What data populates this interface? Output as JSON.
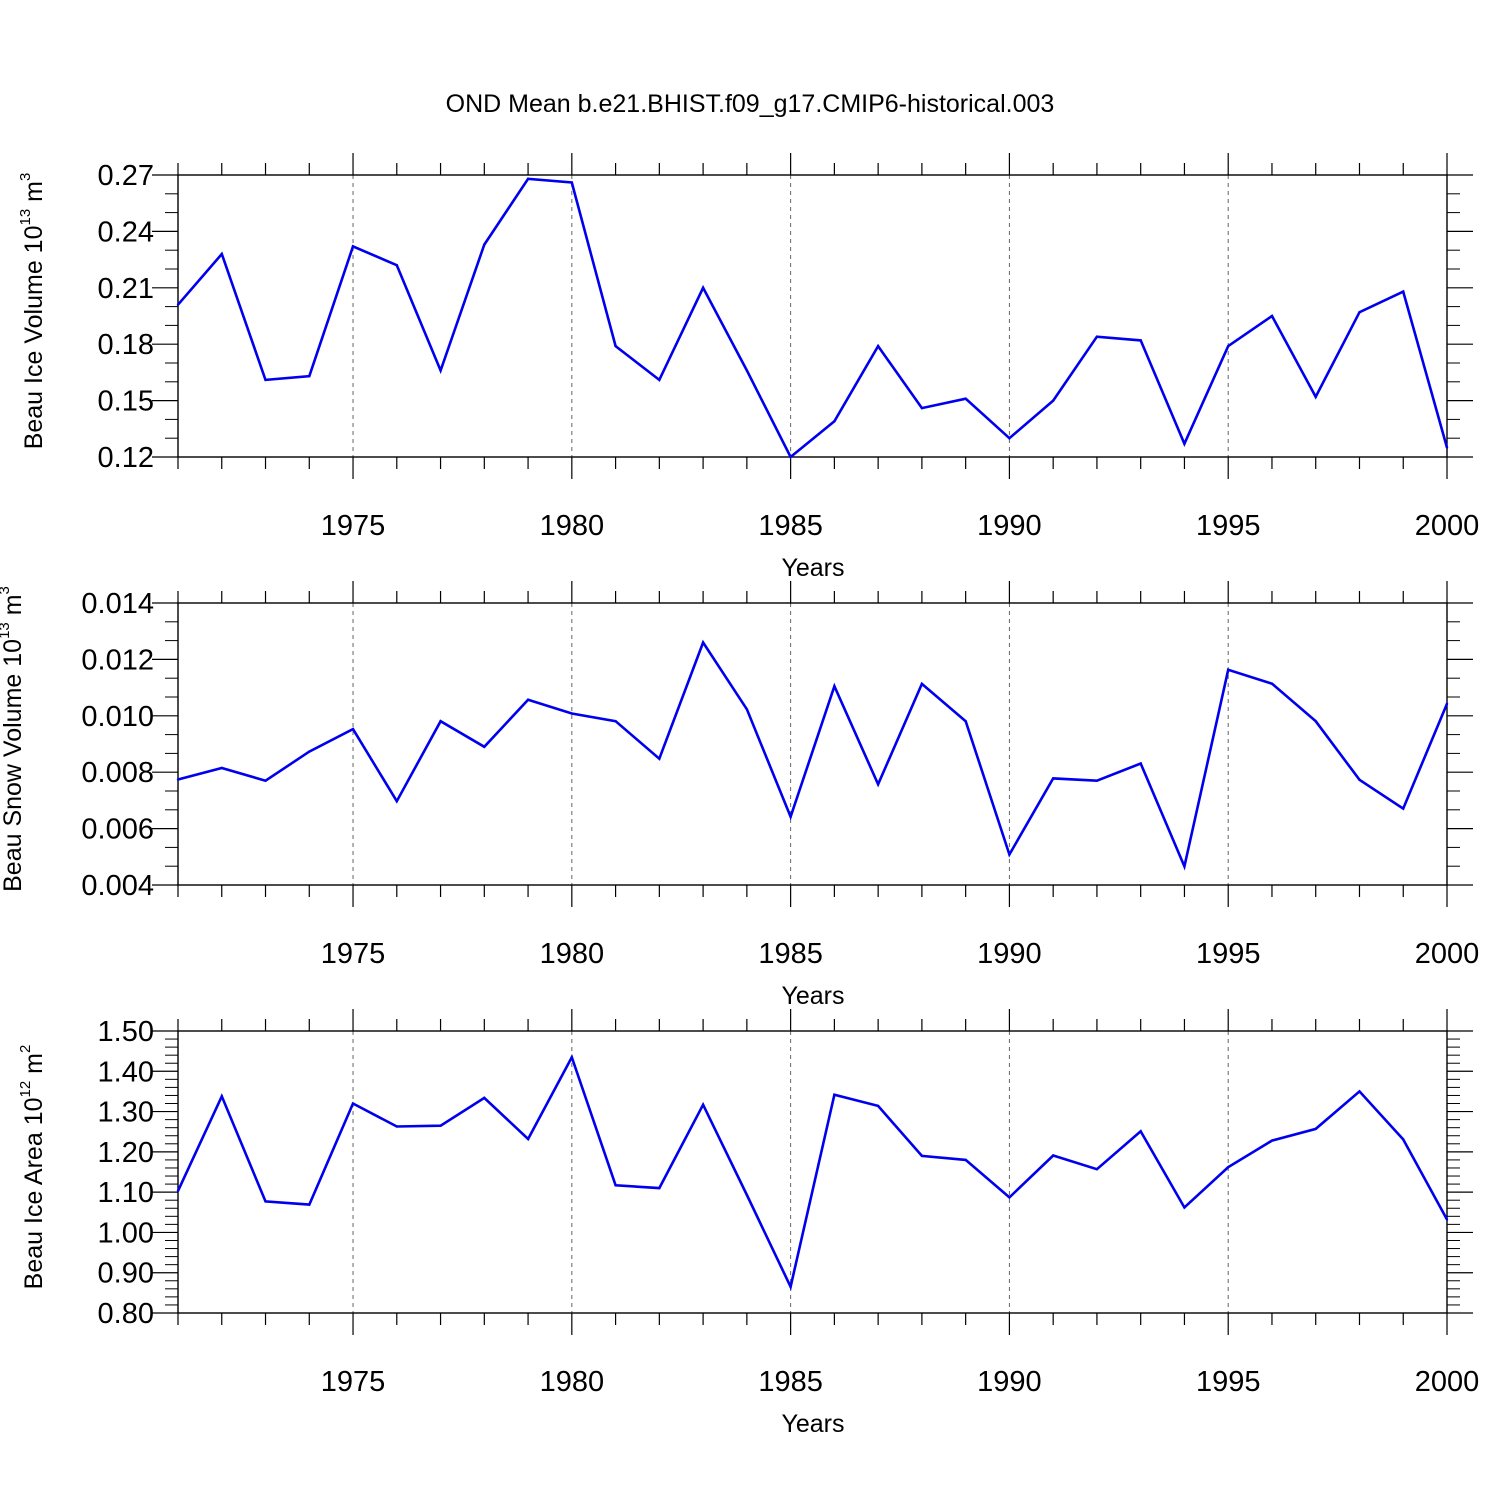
{
  "title": "OND Mean b.e21.BHIST.f09_g17.CMIP6-historical.003",
  "chart_data": [
    {
      "type": "line",
      "ylabel": "Beau Ice Volume 10",
      "ylabel_exp": "13",
      "ylabel_unit": " m",
      "ylabel_unit_exp": "3",
      "xlabel": "Years",
      "xlim": [
        1971,
        2000
      ],
      "ylim": [
        0.12,
        0.27
      ],
      "yticks": [
        0.12,
        0.15,
        0.18,
        0.21,
        0.24,
        0.27
      ],
      "ytick_labels": [
        "0.12",
        "0.15",
        "0.18",
        "0.21",
        "0.24",
        "0.27"
      ],
      "xticks": [
        1975,
        1980,
        1985,
        1990,
        1995,
        2000
      ],
      "xtick_labels": [
        "1975",
        "1980",
        "1985",
        "1990",
        "1995",
        "2000"
      ],
      "vgrid": [
        1975,
        1980,
        1985,
        1990,
        1995
      ],
      "color": "#0000ee",
      "x": [
        1971,
        1972,
        1973,
        1974,
        1975,
        1976,
        1977,
        1978,
        1979,
        1980,
        1981,
        1982,
        1983,
        1984,
        1985,
        1986,
        1987,
        1988,
        1989,
        1990,
        1991,
        1992,
        1993,
        1994,
        1995,
        1996,
        1997,
        1998,
        1999,
        2000
      ],
      "values": [
        0.201,
        0.228,
        0.161,
        0.163,
        0.232,
        0.222,
        0.166,
        0.233,
        0.268,
        0.266,
        0.179,
        0.161,
        0.21,
        0.166,
        0.12,
        0.139,
        0.179,
        0.146,
        0.151,
        0.13,
        0.15,
        0.184,
        0.182,
        0.127,
        0.179,
        0.195,
        0.152,
        0.197,
        0.208,
        0.125
      ]
    },
    {
      "type": "line",
      "ylabel": "Beau Snow Volume 10",
      "ylabel_exp": "13",
      "ylabel_unit": " m",
      "ylabel_unit_exp": "3",
      "xlabel": "Years",
      "xlim": [
        1971,
        2000
      ],
      "ylim": [
        0.004,
        0.014
      ],
      "yticks": [
        0.004,
        0.006,
        0.008,
        0.01,
        0.012,
        0.014
      ],
      "ytick_labels": [
        "0.004",
        "0.006",
        "0.008",
        "0.010",
        "0.012",
        "0.014"
      ],
      "xticks": [
        1975,
        1980,
        1985,
        1990,
        1995,
        2000
      ],
      "xtick_labels": [
        "1975",
        "1980",
        "1985",
        "1990",
        "1995",
        "2000"
      ],
      "vgrid": [
        1975,
        1980,
        1985,
        1990,
        1995
      ],
      "color": "#0000ee",
      "x": [
        1971,
        1972,
        1973,
        1974,
        1975,
        1976,
        1977,
        1978,
        1979,
        1980,
        1981,
        1982,
        1983,
        1984,
        1985,
        1986,
        1987,
        1988,
        1989,
        1990,
        1991,
        1992,
        1993,
        1994,
        1995,
        1996,
        1997,
        1998,
        1999,
        2000
      ],
      "values": [
        0.00774,
        0.00815,
        0.0077,
        0.00873,
        0.00953,
        0.00697,
        0.00981,
        0.0089,
        0.01057,
        0.01008,
        0.00981,
        0.00848,
        0.0126,
        0.01023,
        0.00642,
        0.01105,
        0.00757,
        0.01113,
        0.00981,
        0.00508,
        0.00778,
        0.0077,
        0.00831,
        0.00466,
        0.01163,
        0.01114,
        0.00981,
        0.00773,
        0.00671,
        0.01043
      ]
    },
    {
      "type": "line",
      "ylabel": "Beau Ice Area 10",
      "ylabel_exp": "12",
      "ylabel_unit": " m",
      "ylabel_unit_exp": "2",
      "xlabel": "Years",
      "xlim": [
        1971,
        2000
      ],
      "ylim": [
        0.8,
        1.5
      ],
      "yticks": [
        0.8,
        0.9,
        1.0,
        1.1,
        1.2,
        1.3,
        1.4,
        1.5
      ],
      "ytick_labels": [
        "0.80",
        "0.90",
        "1.00",
        "1.10",
        "1.20",
        "1.30",
        "1.40",
        "1.50"
      ],
      "xticks": [
        1975,
        1980,
        1985,
        1990,
        1995,
        2000
      ],
      "xtick_labels": [
        "1975",
        "1980",
        "1985",
        "1990",
        "1995",
        "2000"
      ],
      "vgrid": [
        1975,
        1980,
        1985,
        1990,
        1995
      ],
      "color": "#0000ee",
      "x": [
        1971,
        1972,
        1973,
        1974,
        1975,
        1976,
        1977,
        1978,
        1979,
        1980,
        1981,
        1982,
        1983,
        1984,
        1985,
        1986,
        1987,
        1988,
        1989,
        1990,
        1991,
        1992,
        1993,
        1994,
        1995,
        1996,
        1997,
        1998,
        1999,
        2000
      ],
      "values": [
        1.103,
        1.338,
        1.077,
        1.069,
        1.32,
        1.263,
        1.265,
        1.334,
        1.232,
        1.435,
        1.117,
        1.11,
        1.317,
        1.093,
        0.865,
        1.342,
        1.314,
        1.19,
        1.18,
        1.087,
        1.191,
        1.157,
        1.251,
        1.062,
        1.162,
        1.228,
        1.257,
        1.35,
        1.231,
        1.032
      ]
    }
  ]
}
